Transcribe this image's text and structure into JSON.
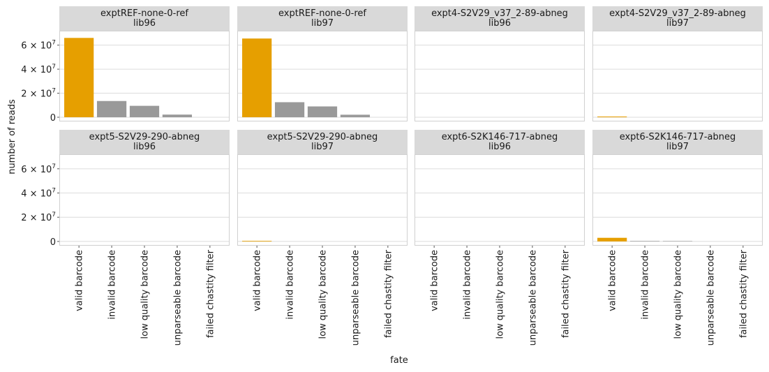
{
  "chart_data": {
    "type": "bar",
    "xlabel": "fate",
    "ylabel": "number of reads",
    "ylim": [
      -3500000,
      72000000
    ],
    "y_ticks": [
      {
        "value": 0,
        "base": "0",
        "exp": ""
      },
      {
        "value": 20000000,
        "base": "2 × 10",
        "exp": "7"
      },
      {
        "value": 40000000,
        "base": "4 × 10",
        "exp": "7"
      },
      {
        "value": 60000000,
        "base": "6 × 10",
        "exp": "7"
      }
    ],
    "categories": [
      "valid barcode",
      "invalid barcode",
      "low quality barcode",
      "unparseable barcode",
      "failed chastity filter"
    ],
    "colors": {
      "highlight": "#E69F00",
      "other": "#999999",
      "strip_bg": "#d9d9d9",
      "grid": "#dcdcdc",
      "panel_border": "#d0d0d0"
    },
    "grid": true,
    "layout": {
      "rows": 2,
      "cols": 4
    },
    "facets": [
      {
        "line1": "exptREF-none-0-ref",
        "line2": "lib96",
        "values": [
          66000000,
          13500000,
          9500000,
          2200000,
          0
        ]
      },
      {
        "line1": "exptREF-none-0-ref",
        "line2": "lib97",
        "values": [
          65500000,
          12500000,
          9000000,
          2100000,
          0
        ]
      },
      {
        "line1": "expt4-S2V29_v37_2-89-abneg",
        "line2": "lib96",
        "values": [
          0,
          0,
          0,
          0,
          0
        ]
      },
      {
        "line1": "expt4-S2V29_v37_2-89-abneg",
        "line2": "lib97",
        "values": [
          600000,
          0,
          0,
          0,
          0
        ]
      },
      {
        "line1": "expt5-S2V29-290-abneg",
        "line2": "lib96",
        "values": [
          0,
          0,
          0,
          0,
          0
        ]
      },
      {
        "line1": "expt5-S2V29-290-abneg",
        "line2": "lib97",
        "values": [
          500000,
          0,
          0,
          0,
          0
        ]
      },
      {
        "line1": "expt6-S2K146-717-abneg",
        "line2": "lib96",
        "values": [
          0,
          0,
          0,
          0,
          0
        ]
      },
      {
        "line1": "expt6-S2K146-717-abneg",
        "line2": "lib97",
        "values": [
          3000000,
          400000,
          350000,
          0,
          0
        ]
      }
    ]
  }
}
